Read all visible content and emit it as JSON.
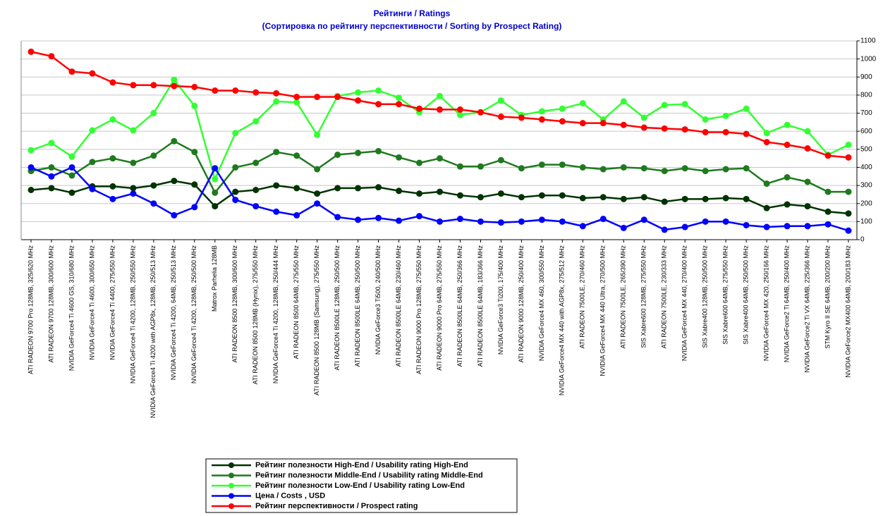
{
  "chart_data": {
    "type": "line",
    "title": "Рейтинги / Ratings",
    "subtitle": "(Сортировка по рейтингу перспективности / Sorting by Prospect Rating)",
    "categories": [
      "ATI RADEON 9700 Pro 128MB, 325/620 MHz",
      "ATI RADEON 9700 128MB, 300/600 MHz",
      "NVIDIA GeForce4 Ti 4600 GS, 310/680 MHz",
      "NVIDIA GeForce4 Ti 4600, 300/650 MHz",
      "NVIDIA GeForce4 Ti 4400, 275/550 MHz",
      "NVIDIA GeForce4 Ti 4200, 128MB, 250/550 MHz",
      "NVIDIA GeForce4 Ti 4200 with AGP8x, 128MB, 250/513 MHz",
      "NVIDIA GeForce4 Ti 4200, 64MB, 250/513 MHz",
      "NVIDIA GeForce4 Ti 4200, 128MB, 250/500 MHz",
      "Matrox Parhelia 128MB",
      "ATI RADEON 8500 128MB, 300/600 MHz",
      "ATI RADEON 8500 128MB (Hynix), 275/550 MHz",
      "NVIDIA GeForce4 Ti 4200, 128MB, 250/444 MHz",
      "ATI RADEON 8500 64MB, 275/550 MHz",
      "ATI RADEON 8500 128MB (Samsung), 275/550 MHz",
      "ATI RADEON 8500LE 128MB, 250/500 MHz",
      "ATI RADEON 8500LE 64MB, 250/500 MHz",
      "NVIDIA GeForce3 Ti500, 240/500 MHz",
      "ATI RADEON 8500LE 64MB, 230/460 MHz",
      "ATI RADEON 9000 Pro 128MB, 275/550 MHz",
      "ATI RADEON 9000 Pro 64MB, 275/550 MHz",
      "ATI RADEON 8500LE 64MB, 250/366 MHz",
      "ATI RADEON 8500LE 64MB, 183/366 MHz",
      "NVIDIA GeForce3 Ti200, 175/400 MHz",
      "ATI RADEON 9000 128MB, 250/400 MHz",
      "NVIDIA GeForce4 MX 460, 300/550 MHz",
      "NVIDIA GeForce4 MX 440 with AGP8x, 275/512 MHz",
      "ATI RADEON 7500LE, 270/460 MHz",
      "NVIDIA GeForce4 MX 440 Ultra, 270/500 MHz",
      "ATI RADEON 7500LE, 265/390 MHz",
      "SIS Xabre600 128MB, 275/550 MHz",
      "ATI RADEON 7500LE, 230/333 MHz",
      "NVIDIA GeForce4 MX 440, 270/400 MHz",
      "SIS Xabre400 128MB, 250/500 MHz",
      "SIS Xabre600 64MB, 275/550 MHz",
      "SIS Xabre400 64MB, 250/500 MHz",
      "NVIDIA GeForce4 MX 420, 250/166 MHz",
      "NVIDIA GeForce2 Ti 64MB, 250/400 MHz",
      "NVIDIA GeForce2 Ti VX 64MB, 225/366 MHz",
      "STM Kyro II SE 64MB, 200/200 MHz",
      "NVIDIA GeForce2 MX400 64MB, 200/183 MHz"
    ],
    "series": [
      {
        "name": "Рейтинг полезности High-End / Usability rating High-End",
        "color": "#003300",
        "values": [
          275,
          285,
          260,
          295,
          295,
          285,
          300,
          325,
          305,
          185,
          265,
          275,
          300,
          285,
          255,
          285,
          285,
          290,
          270,
          255,
          265,
          245,
          235,
          255,
          235,
          245,
          245,
          230,
          235,
          225,
          235,
          210,
          225,
          225,
          230,
          225,
          175,
          195,
          185,
          155,
          145
        ]
      },
      {
        "name": "Рейтинг полезности Middle-End / Usability rating Middle-End",
        "color": "#1e7a1e",
        "values": [
          380,
          400,
          355,
          430,
          450,
          425,
          465,
          545,
          485,
          260,
          400,
          425,
          485,
          465,
          390,
          470,
          480,
          490,
          455,
          425,
          450,
          405,
          405,
          440,
          395,
          415,
          415,
          400,
          390,
          400,
          395,
          380,
          395,
          380,
          390,
          395,
          310,
          345,
          320,
          265,
          265
        ]
      },
      {
        "name": "Рейтинг полезности Low-End / Usability rating Low-End",
        "color": "#33ff33",
        "values": [
          495,
          535,
          460,
          605,
          665,
          605,
          700,
          885,
          740,
          335,
          590,
          655,
          765,
          760,
          580,
          795,
          815,
          825,
          785,
          705,
          795,
          690,
          705,
          770,
          690,
          710,
          725,
          755,
          665,
          765,
          675,
          745,
          750,
          665,
          685,
          725,
          590,
          635,
          600,
          470,
          525
        ]
      },
      {
        "name": "Цена / Costs , USD",
        "color": "#0000ff",
        "values": [
          400,
          350,
          400,
          280,
          225,
          255,
          200,
          135,
          180,
          395,
          220,
          185,
          155,
          135,
          200,
          125,
          110,
          120,
          105,
          130,
          100,
          115,
          100,
          95,
          100,
          110,
          100,
          75,
          115,
          65,
          110,
          55,
          70,
          100,
          100,
          80,
          70,
          75,
          75,
          85,
          50
        ]
      },
      {
        "name": "Рейтинг перспективности / Prospect rating",
        "color": "#ff0000",
        "values": [
          1040,
          1015,
          930,
          920,
          870,
          855,
          855,
          850,
          845,
          825,
          825,
          815,
          810,
          790,
          790,
          790,
          770,
          750,
          750,
          725,
          720,
          720,
          705,
          680,
          675,
          665,
          655,
          645,
          645,
          635,
          620,
          615,
          610,
          595,
          595,
          585,
          540,
          525,
          505,
          465,
          455
        ]
      }
    ],
    "ylim": [
      0,
      1100
    ],
    "yticks": [
      0,
      100,
      200,
      300,
      400,
      500,
      600,
      700,
      800,
      900,
      1000,
      1100
    ],
    "grid": true,
    "legend": "bottom"
  }
}
